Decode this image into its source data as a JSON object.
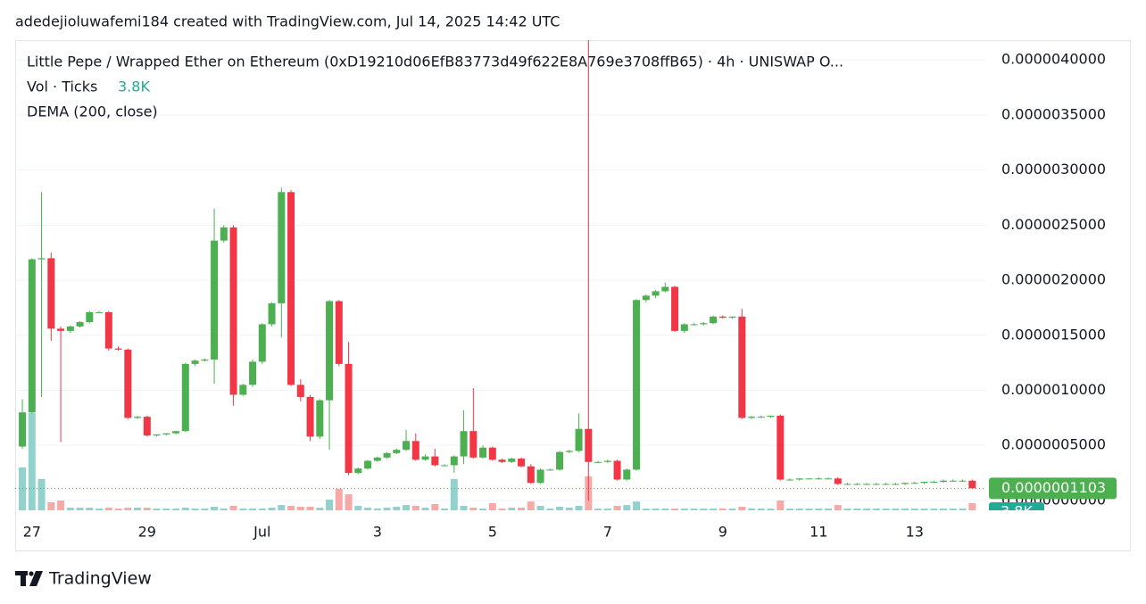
{
  "header": "adedejioluwafemi184 created with TradingView.com, Jul 14, 2025 14:42 UTC",
  "footer": {
    "brand": "TradingView"
  },
  "chart_data": {
    "type": "candlestick",
    "title": "Little Pepe / Wrapped Ether on Ethereum (0xD19210d06EfB83773d49f622E8A769e3708ffB65) · 4h · UNISWAP  O...",
    "indicator": "DEMA (200, close)",
    "up_color": "#4caf50",
    "down_color": "#f23645",
    "volume_up_color": "#92d2cc",
    "volume_down_color": "#f7a9a7",
    "volume_label_color": "#22ab94",
    "categories": [
      null,
      "27",
      null,
      null,
      null,
      null,
      null,
      null,
      null,
      null,
      null,
      null,
      null,
      "29",
      null,
      null,
      null,
      null,
      null,
      null,
      null,
      null,
      null,
      null,
      null,
      "Jul",
      null,
      null,
      null,
      null,
      null,
      null,
      null,
      null,
      null,
      null,
      null,
      "3",
      null,
      null,
      null,
      null,
      null,
      null,
      null,
      null,
      null,
      null,
      null,
      "5",
      null,
      null,
      null,
      null,
      null,
      null,
      null,
      null,
      null,
      null,
      null,
      "7",
      null,
      null,
      null,
      null,
      null,
      null,
      null,
      null,
      null,
      null,
      null,
      "9",
      null,
      null,
      null,
      null,
      null,
      null,
      null,
      null,
      null,
      "11",
      null,
      null,
      null,
      null,
      null,
      null,
      null,
      null,
      null,
      "13",
      null,
      null,
      null,
      null,
      null,
      null
    ],
    "open": [
      4.9e-07,
      8e-07,
      2.19e-06,
      2.2e-06,
      1.56e-06,
      1.54e-06,
      1.58e-06,
      1.62e-06,
      1.71e-06,
      1.71e-06,
      1.38e-06,
      1.37e-06,
      7.5e-07,
      7.6e-07,
      5.9e-07,
      6e-07,
      6.1e-07,
      6.3e-07,
      1.24e-06,
      1.27e-06,
      1.28e-06,
      2.36e-06,
      2.48e-06,
      9.6e-07,
      1.05e-06,
      1.26e-06,
      1.6e-06,
      1.79e-06,
      2.8e-06,
      1.05e-06,
      9.4e-07,
      5.8e-07,
      9.1e-07,
      1.81e-06,
      1.24e-06,
      2.5e-07,
      2.9e-07,
      3.6e-07,
      3.9e-07,
      4.3e-07,
      4.6e-07,
      5.4e-07,
      3.7e-07,
      4e-07,
      3.2e-07,
      3.2e-07,
      4e-07,
      6.3e-07,
      3.9e-07,
      4.8e-07,
      3.7e-07,
      3.5e-07,
      3.8e-07,
      3.1e-07,
      1.6e-07,
      2.8e-07,
      2.8e-07,
      4.4e-07,
      4.5e-07,
      6.5e-07,
      3.5e-07,
      3.5e-07,
      3.6e-07,
      1.9e-07,
      2.8e-07,
      1.82e-06,
      1.86e-06,
      1.9e-06,
      1.94e-06,
      1.54e-06,
      1.6e-06,
      1.6e-06,
      1.61e-06,
      1.67e-06,
      1.66e-06,
      1.67e-06,
      7.5e-07,
      7.6e-07,
      7.6e-07,
      7.7e-07,
      1.9e-07,
      1.9e-07,
      2e-07,
      2e-07,
      2e-07,
      2e-07,
      1.5e-07,
      1.5e-07,
      1.5e-07,
      1.5e-07,
      1.5e-07,
      1.5e-07,
      1.5e-07,
      1.6e-07,
      1.6e-07,
      1.7e-07,
      1.7e-07,
      1.8e-07,
      1.8e-07,
      1.8e-07
    ],
    "high": [
      9.2e-07,
      2.2e-06,
      2.8e-06,
      2.25e-06,
      1.58e-06,
      1.59e-06,
      1.63e-06,
      1.72e-06,
      1.72e-06,
      1.72e-06,
      1.4e-06,
      1.38e-06,
      7.7e-07,
      7.7e-07,
      6e-07,
      6.1e-07,
      6.3e-07,
      1.25e-06,
      1.28e-06,
      1.29e-06,
      2.65e-06,
      2.5e-06,
      2.5e-06,
      1.06e-06,
      1.28e-06,
      1.61e-06,
      1.8e-06,
      2.84e-06,
      2.82e-06,
      1.1e-06,
      9.6e-07,
      9.2e-07,
      1.82e-06,
      1.82e-06,
      1.44e-06,
      3e-07,
      3.7e-07,
      4e-07,
      4.4e-07,
      4.7e-07,
      6.4e-07,
      6.1e-07,
      4.2e-07,
      4.7e-07,
      3.3e-07,
      4.1e-07,
      8.2e-07,
      1.02e-06,
      5e-07,
      4.9e-07,
      3.8e-07,
      3.9e-07,
      3.9e-07,
      3.3e-07,
      2.9e-07,
      2.9e-07,
      4.5e-07,
      4.6e-07,
      7.9e-07,
      4.2e-06,
      3.6e-07,
      3.7e-07,
      3.7e-07,
      2.9e-07,
      1.83e-06,
      1.87e-06,
      1.91e-06,
      1.98e-06,
      1.95e-06,
      1.61e-06,
      1.61e-06,
      1.62e-06,
      1.68e-06,
      1.68e-06,
      1.67e-06,
      1.74e-06,
      7.7e-07,
      7.7e-07,
      7.7e-07,
      7.8e-07,
      2e-07,
      2e-07,
      2e-07,
      2.1e-07,
      2.1e-07,
      2.1e-07,
      1.6e-07,
      1.6e-07,
      1.6e-07,
      1.6e-07,
      1.6e-07,
      1.6e-07,
      1.6e-07,
      1.7e-07,
      1.7e-07,
      1.8e-07,
      1.9e-07,
      1.9e-07,
      1.9e-07,
      1.9e-07
    ],
    "low": [
      4.7e-07,
      7.9e-07,
      9.4e-07,
      1.45e-06,
      5.3e-07,
      1.52e-06,
      1.57e-06,
      1.61e-06,
      1.7e-06,
      1.36e-06,
      1.36e-06,
      7.4e-07,
      7.4e-07,
      5.8e-07,
      5.8e-07,
      5.9e-07,
      6e-07,
      6.2e-07,
      1.22e-06,
      1.26e-06,
      1.06e-06,
      2.34e-06,
      8.6e-07,
      9.5e-07,
      1.03e-06,
      1.24e-06,
      1.58e-06,
      1.48e-06,
      1.04e-06,
      9e-07,
      5.4e-07,
      5.6e-07,
      4.6e-07,
      1.22e-06,
      2.3e-07,
      2.4e-07,
      2.8e-07,
      3.5e-07,
      3.8e-07,
      4.2e-07,
      4.5e-07,
      3.6e-07,
      3.6e-07,
      3.1e-07,
      3.1e-07,
      2.5e-07,
      3.3e-07,
      3.8e-07,
      3.8e-07,
      3.6e-07,
      3.4e-07,
      3.4e-07,
      3e-07,
      1.5e-07,
      1.5e-07,
      2.7e-07,
      2.7e-07,
      4.3e-07,
      4.4e-07,
      0.0,
      3.4e-07,
      3.4e-07,
      1.8e-07,
      1.8e-07,
      2.7e-07,
      1.8e-06,
      1.84e-06,
      1.89e-06,
      1.53e-06,
      1.52e-06,
      1.59e-06,
      1.59e-06,
      1.6e-06,
      1.65e-06,
      1.65e-06,
      7.4e-07,
      7.4e-07,
      7.5e-07,
      7.5e-07,
      1.8e-07,
      1.8e-07,
      1.8e-07,
      1.9e-07,
      1.9e-07,
      1.9e-07,
      1.4e-07,
      1.4e-07,
      1.4e-07,
      1.4e-07,
      1.4e-07,
      1.4e-07,
      1.4e-07,
      1.4e-07,
      1.5e-07,
      1.5e-07,
      1.6e-07,
      1.6e-07,
      1.7e-07,
      1.7e-07,
      1.1e-07
    ],
    "close": [
      8e-07,
      2.19e-06,
      2.2e-06,
      1.56e-06,
      1.54e-06,
      1.58e-06,
      1.62e-06,
      1.71e-06,
      1.71e-06,
      1.38e-06,
      1.37e-06,
      7.5e-07,
      7.6e-07,
      5.9e-07,
      6e-07,
      6.1e-07,
      6.3e-07,
      1.24e-06,
      1.27e-06,
      1.28e-06,
      2.36e-06,
      2.48e-06,
      9.6e-07,
      1.05e-06,
      1.26e-06,
      1.6e-06,
      1.79e-06,
      2.8e-06,
      1.05e-06,
      9.4e-07,
      5.8e-07,
      9.1e-07,
      1.81e-06,
      1.24e-06,
      2.5e-07,
      2.9e-07,
      3.6e-07,
      3.9e-07,
      4.3e-07,
      4.6e-07,
      5.4e-07,
      3.7e-07,
      4e-07,
      3.2e-07,
      3.2e-07,
      4e-07,
      6.3e-07,
      3.9e-07,
      4.8e-07,
      3.7e-07,
      3.5e-07,
      3.8e-07,
      3.1e-07,
      1.6e-07,
      2.8e-07,
      2.8e-07,
      4.4e-07,
      4.5e-07,
      6.5e-07,
      3.5e-07,
      3.5e-07,
      3.6e-07,
      1.9e-07,
      2.8e-07,
      1.82e-06,
      1.86e-06,
      1.9e-06,
      1.94e-06,
      1.54e-06,
      1.6e-06,
      1.6e-06,
      1.61e-06,
      1.67e-06,
      1.66e-06,
      1.67e-06,
      7.5e-07,
      7.6e-07,
      7.6e-07,
      7.7e-07,
      1.9e-07,
      1.9e-07,
      2e-07,
      2e-07,
      2e-07,
      2e-07,
      1.5e-07,
      1.5e-07,
      1.5e-07,
      1.5e-07,
      1.5e-07,
      1.5e-07,
      1.5e-07,
      1.6e-07,
      1.6e-07,
      1.7e-07,
      1.7e-07,
      1.8e-07,
      1.8e-07,
      1.8e-07,
      1.103e-07
    ],
    "last_price_label": "0.0000001103",
    "volume": {
      "name": "Vol · Ticks",
      "last_label": "3.8K",
      "values": [
        22800,
        51800,
        16600,
        4300,
        5200,
        1400,
        1400,
        1400,
        950,
        1400,
        950,
        1400,
        1400,
        1400,
        950,
        950,
        950,
        1400,
        950,
        950,
        1900,
        950,
        2400,
        950,
        950,
        950,
        1400,
        2800,
        2400,
        1900,
        1900,
        1400,
        5700,
        11400,
        8500,
        2400,
        1400,
        950,
        1400,
        1900,
        2800,
        2400,
        1400,
        3300,
        950,
        16600,
        2400,
        1400,
        950,
        3800,
        950,
        1400,
        1400,
        4700,
        2400,
        950,
        1900,
        1400,
        2400,
        18100,
        950,
        950,
        2400,
        2800,
        4700,
        950,
        950,
        950,
        950,
        950,
        950,
        950,
        950,
        950,
        950,
        1900,
        950,
        950,
        950,
        5200,
        950,
        950,
        950,
        950,
        950,
        2800,
        950,
        950,
        950,
        950,
        950,
        950,
        950,
        950,
        950,
        950,
        950,
        950,
        950,
        3800
      ]
    },
    "volume_ylim": [
      0,
      250000
    ],
    "ylim": [
      -1.38e-07,
      4.18e-06
    ],
    "yticks": [
      {
        "value": 0,
        "label": "0.0000000000"
      },
      {
        "value": 5e-07,
        "label": "0.0000005000"
      },
      {
        "value": 1e-06,
        "label": "0.0000010000"
      },
      {
        "value": 1.5e-06,
        "label": "0.0000015000"
      },
      {
        "value": 2e-06,
        "label": "0.0000020000"
      },
      {
        "value": 2.5e-06,
        "label": "0.0000025000"
      },
      {
        "value": 3e-06,
        "label": "0.0000030000"
      },
      {
        "value": 3.5e-06,
        "label": "0.0000035000"
      },
      {
        "value": 4e-06,
        "label": "0.0000040000"
      }
    ],
    "grid": true
  }
}
